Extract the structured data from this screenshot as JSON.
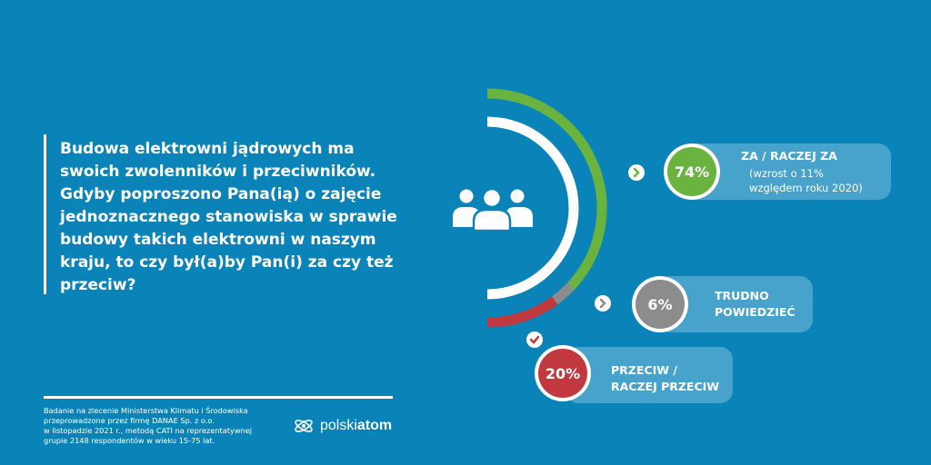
{
  "question": "Budowa elektrowni jądrowych ma\nswoich zwolenników i przeciwników.\nGdyby poproszono Pana(ią) o zajęcie\njednoznacznego stanowiska w sprawie\nbudowy takich elektrowni w naszym\nkraju, to czy był(a)by Pan(i) za czy też\nprzeciw?",
  "footnote": "Badanie na zlecenie Ministerstwa Klimatu i Środowiska\nprzeprowadzone przez firmę DANAE Sp. z o.o.\nw listopadzie 2021 r., metodą CATI na reprezentatywnej\ngrupie 2148 respondentów w wieku 15-75 lat.",
  "logo": {
    "light": "polski",
    "bold": "atom",
    "icon": "atom-icon"
  },
  "center_icon": "people-group-icon",
  "colors": {
    "background": "#0a84b8",
    "pill": "#48a3cc",
    "green": "#6ab33e",
    "gray": "#8c8c8c",
    "red": "#c1393e"
  },
  "chart_data": {
    "type": "pie",
    "style": "half-donut",
    "slices": [
      {
        "label": "ZA / RACZEJ ZA",
        "value": 74,
        "value_label": "74%",
        "note": [
          "(wzrost o 11%",
          "względem roku 2020)"
        ],
        "color": "#6ab33e",
        "marker": "chevron-right-icon"
      },
      {
        "label": "TRUDNO POWIEDZIEĆ",
        "value": 6,
        "value_label": "6%",
        "note": [],
        "color": "#8c8c8c",
        "marker": "chevron-right-icon"
      },
      {
        "label": "PRZECIW / RACZEJ PRZECIW",
        "value": 20,
        "value_label": "20%",
        "note": [],
        "color": "#c1393e",
        "marker": "check-icon"
      }
    ]
  }
}
